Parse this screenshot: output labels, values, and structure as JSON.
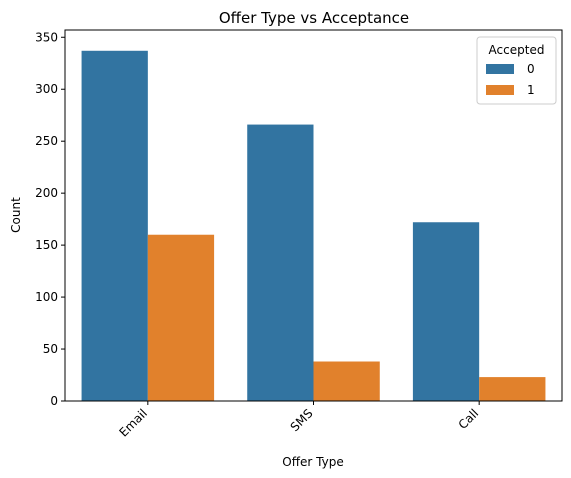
{
  "chart_data": {
    "type": "bar",
    "title": "Offer Type vs Acceptance",
    "xlabel": "Offer Type",
    "ylabel": "Count",
    "categories": [
      "Email",
      "SMS",
      "Call"
    ],
    "series": [
      {
        "name": "0",
        "values": [
          337,
          266,
          172
        ],
        "color": "#3274a1"
      },
      {
        "name": "1",
        "values": [
          160,
          38,
          23
        ],
        "color": "#e1812c"
      }
    ],
    "ylim": [
      0,
      357
    ],
    "yticks": [
      0,
      50,
      100,
      150,
      200,
      250,
      300,
      350
    ],
    "legend": {
      "title": "Accepted",
      "placement": "top-right"
    },
    "grid": false
  }
}
